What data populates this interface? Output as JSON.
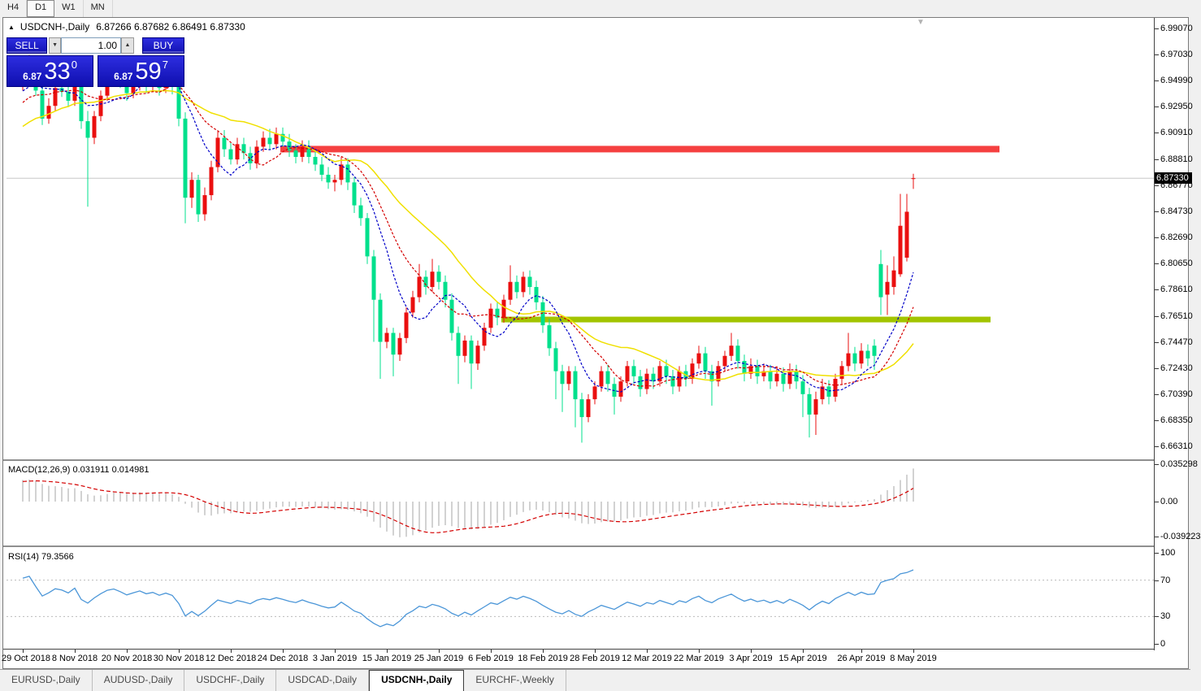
{
  "timeframe_bar": {
    "items": [
      {
        "label": "H4",
        "active": false
      },
      {
        "label": "D1",
        "active": true
      },
      {
        "label": "W1",
        "active": false
      },
      {
        "label": "MN",
        "active": false
      }
    ]
  },
  "chart_header": {
    "collapse_arrow": "▲",
    "symbol_title": "USDCNH-,Daily",
    "ohlc_values": "6.87266 6.87682 6.86491 6.87330",
    "shift_marker": "▼"
  },
  "trade_panel": {
    "sell_label": "SELL",
    "buy_label": "BUY",
    "volume": "1.00",
    "volume_down_glyph": "▼",
    "volume_up_glyph": "▲",
    "sell_price_small": "6.87",
    "sell_price_big": "33",
    "sell_price_sup": "0",
    "buy_price_small": "6.87",
    "buy_price_big": "59",
    "buy_price_sup": "7"
  },
  "macd_panel_label": "MACD(12,26,9) 0.031911 0.014981",
  "rsi_panel_label": "RSI(14) 79.3566",
  "bottom_tabs": [
    {
      "label": "EURUSD-,Daily",
      "active": false
    },
    {
      "label": "AUDUSD-,Daily",
      "active": false
    },
    {
      "label": "USDCHF-,Daily",
      "active": false
    },
    {
      "label": "USDCAD-,Daily",
      "active": false
    },
    {
      "label": "USDCNH-,Daily",
      "active": true
    },
    {
      "label": "EURCHF-,Weekly",
      "active": false
    }
  ],
  "chart_data": {
    "type": "candlestick",
    "symbol": "USDCNH-",
    "timeframe": "Daily",
    "current_bar": {
      "open": 6.87266,
      "high": 6.87682,
      "low": 6.86491,
      "close": 6.8733
    },
    "bid_price": 6.8733,
    "price_axis_ticks": [
      6.9907,
      6.9703,
      6.9499,
      6.9295,
      6.9091,
      6.8881,
      6.8677,
      6.8473,
      6.8269,
      6.8065,
      6.7861,
      6.7651,
      6.7447,
      6.7243,
      6.7039,
      6.6835,
      6.6631
    ],
    "x_ticks": [
      {
        "label": "29 Oct 2018",
        "index": 0
      },
      {
        "label": "8 Nov 2018",
        "index": 8
      },
      {
        "label": "20 Nov 2018",
        "index": 16
      },
      {
        "label": "30 Nov 2018",
        "index": 24
      },
      {
        "label": "12 Dec 2018",
        "index": 32
      },
      {
        "label": "24 Dec 2018",
        "index": 40
      },
      {
        "label": "3 Jan 2019",
        "index": 48
      },
      {
        "label": "15 Jan 2019",
        "index": 56
      },
      {
        "label": "25 Jan 2019",
        "index": 64
      },
      {
        "label": "6 Feb 2019",
        "index": 72
      },
      {
        "label": "18 Feb 2019",
        "index": 80
      },
      {
        "label": "28 Feb 2019",
        "index": 88
      },
      {
        "label": "12 Mar 2019",
        "index": 96
      },
      {
        "label": "22 Mar 2019",
        "index": 104
      },
      {
        "label": "3 Apr 2019",
        "index": 112
      },
      {
        "label": "15 Apr 2019",
        "index": 120
      },
      {
        "label": "26 Apr 2019",
        "index": 129
      },
      {
        "label": "8 May 2019",
        "index": 137
      }
    ],
    "candles": [
      [
        6.948,
        6.9635,
        6.942,
        6.952
      ],
      [
        6.952,
        6.97,
        6.948,
        6.96
      ],
      [
        6.96,
        6.968,
        6.938,
        6.942
      ],
      [
        6.942,
        6.947,
        6.915,
        6.92
      ],
      [
        6.92,
        6.936,
        6.916,
        6.93
      ],
      [
        6.93,
        6.95,
        6.926,
        6.944
      ],
      [
        6.944,
        6.949,
        6.937,
        6.941
      ],
      [
        6.941,
        6.946,
        6.929,
        6.934
      ],
      [
        6.934,
        6.956,
        6.93,
        6.95
      ],
      [
        6.95,
        6.954,
        6.912,
        6.918
      ],
      [
        6.918,
        6.926,
        6.851,
        6.905
      ],
      [
        6.905,
        6.926,
        6.9,
        6.922
      ],
      [
        6.922,
        6.942,
        6.918,
        6.938
      ],
      [
        6.938,
        6.956,
        6.934,
        6.952
      ],
      [
        6.952,
        6.962,
        6.946,
        6.958
      ],
      [
        6.958,
        6.964,
        6.944,
        6.95
      ],
      [
        6.95,
        6.956,
        6.934,
        6.94
      ],
      [
        6.94,
        6.952,
        6.936,
        6.948
      ],
      [
        6.948,
        6.96,
        6.942,
        6.955
      ],
      [
        6.955,
        6.96,
        6.94,
        6.947
      ],
      [
        6.947,
        6.956,
        6.942,
        6.952
      ],
      [
        6.952,
        6.957,
        6.938,
        6.944
      ],
      [
        6.944,
        6.955,
        6.94,
        6.951
      ],
      [
        6.951,
        6.956,
        6.939,
        6.945
      ],
      [
        6.945,
        6.948,
        6.914,
        6.92
      ],
      [
        6.92,
        6.925,
        6.838,
        6.858
      ],
      [
        6.858,
        6.878,
        6.85,
        6.872
      ],
      [
        6.872,
        6.876,
        6.839,
        6.845
      ],
      [
        6.845,
        6.866,
        6.84,
        6.86
      ],
      [
        6.86,
        6.887,
        6.856,
        6.882
      ],
      [
        6.882,
        6.91,
        6.878,
        6.905
      ],
      [
        6.905,
        6.911,
        6.89,
        6.896
      ],
      [
        6.896,
        6.901,
        6.884,
        6.888
      ],
      [
        6.888,
        6.905,
        6.884,
        6.9
      ],
      [
        6.9,
        6.905,
        6.888,
        6.893
      ],
      [
        6.893,
        6.898,
        6.88,
        6.885
      ],
      [
        6.885,
        6.903,
        6.881,
        6.898
      ],
      [
        6.898,
        6.91,
        6.894,
        6.905
      ],
      [
        6.905,
        6.912,
        6.896,
        6.9
      ],
      [
        6.9,
        6.913,
        6.896,
        6.908
      ],
      [
        6.908,
        6.913,
        6.898,
        6.902
      ],
      [
        6.902,
        6.908,
        6.89,
        6.895
      ],
      [
        6.895,
        6.9,
        6.885,
        6.89
      ],
      [
        6.89,
        6.903,
        6.886,
        6.898
      ],
      [
        6.898,
        6.903,
        6.885,
        6.89
      ],
      [
        6.89,
        6.895,
        6.879,
        6.884
      ],
      [
        6.884,
        6.89,
        6.871,
        6.876
      ],
      [
        6.876,
        6.882,
        6.865,
        6.87
      ],
      [
        6.87,
        6.876,
        6.863,
        6.872
      ],
      [
        6.872,
        6.89,
        6.868,
        6.884
      ],
      [
        6.884,
        6.889,
        6.864,
        6.87
      ],
      [
        6.87,
        6.874,
        6.846,
        6.852
      ],
      [
        6.852,
        6.858,
        6.836,
        6.842
      ],
      [
        6.842,
        6.846,
        6.806,
        6.812
      ],
      [
        6.812,
        6.817,
        6.745,
        6.778
      ],
      [
        6.778,
        6.783,
        6.716,
        6.745
      ],
      [
        6.745,
        6.756,
        6.74,
        6.752
      ],
      [
        6.752,
        6.756,
        6.718,
        6.735
      ],
      [
        6.735,
        6.752,
        6.73,
        6.748
      ],
      [
        6.748,
        6.772,
        6.744,
        6.768
      ],
      [
        6.768,
        6.785,
        6.764,
        6.78
      ],
      [
        6.78,
        6.806,
        6.776,
        6.796
      ],
      [
        6.796,
        6.801,
        6.782,
        6.788
      ],
      [
        6.788,
        6.81,
        6.784,
        6.8
      ],
      [
        6.8,
        6.805,
        6.786,
        6.792
      ],
      [
        6.792,
        6.797,
        6.772,
        6.778
      ],
      [
        6.778,
        6.783,
        6.746,
        6.752
      ],
      [
        6.752,
        6.757,
        6.712,
        6.734
      ],
      [
        6.734,
        6.75,
        6.729,
        6.746
      ],
      [
        6.746,
        6.75,
        6.708,
        6.728
      ],
      [
        6.728,
        6.746,
        6.723,
        6.742
      ],
      [
        6.742,
        6.76,
        6.738,
        6.756
      ],
      [
        6.756,
        6.775,
        6.752,
        6.771
      ],
      [
        6.771,
        6.776,
        6.758,
        6.764
      ],
      [
        6.764,
        6.782,
        6.76,
        6.778
      ],
      [
        6.778,
        6.805,
        6.774,
        6.792
      ],
      [
        6.792,
        6.797,
        6.779,
        6.784
      ],
      [
        6.784,
        6.8,
        6.78,
        6.796
      ],
      [
        6.796,
        6.801,
        6.782,
        6.788
      ],
      [
        6.788,
        6.793,
        6.77,
        6.776
      ],
      [
        6.776,
        6.781,
        6.752,
        6.758
      ],
      [
        6.758,
        6.763,
        6.734,
        6.74
      ],
      [
        6.74,
        6.745,
        6.7,
        6.722
      ],
      [
        6.722,
        6.727,
        6.69,
        6.712
      ],
      [
        6.712,
        6.726,
        6.707,
        6.722
      ],
      [
        6.722,
        6.726,
        6.678,
        6.7
      ],
      [
        6.7,
        6.705,
        6.666,
        6.686
      ],
      [
        6.686,
        6.704,
        6.682,
        6.7
      ],
      [
        6.7,
        6.714,
        6.696,
        6.71
      ],
      [
        6.71,
        6.726,
        6.706,
        6.722
      ],
      [
        6.722,
        6.727,
        6.706,
        6.712
      ],
      [
        6.712,
        6.717,
        6.688,
        6.702
      ],
      [
        6.702,
        6.718,
        6.698,
        6.714
      ],
      [
        6.714,
        6.73,
        6.71,
        6.726
      ],
      [
        6.726,
        6.731,
        6.712,
        6.718
      ],
      [
        6.718,
        6.723,
        6.702,
        6.708
      ],
      [
        6.708,
        6.724,
        6.704,
        6.72
      ],
      [
        6.72,
        6.725,
        6.708,
        6.714
      ],
      [
        6.714,
        6.73,
        6.71,
        6.726
      ],
      [
        6.726,
        6.731,
        6.712,
        6.718
      ],
      [
        6.718,
        6.723,
        6.704,
        6.71
      ],
      [
        6.71,
        6.726,
        6.706,
        6.722
      ],
      [
        6.722,
        6.727,
        6.71,
        6.716
      ],
      [
        6.716,
        6.732,
        6.712,
        6.728
      ],
      [
        6.728,
        6.742,
        6.724,
        6.736
      ],
      [
        6.736,
        6.741,
        6.716,
        6.722
      ],
      [
        6.722,
        6.727,
        6.695,
        6.714
      ],
      [
        6.714,
        6.73,
        6.71,
        6.726
      ],
      [
        6.726,
        6.738,
        6.722,
        6.734
      ],
      [
        6.734,
        6.752,
        6.73,
        6.742
      ],
      [
        6.742,
        6.747,
        6.724,
        6.73
      ],
      [
        6.73,
        6.735,
        6.714,
        6.72
      ],
      [
        6.72,
        6.732,
        6.716,
        6.726
      ],
      [
        6.726,
        6.731,
        6.712,
        6.718
      ],
      [
        6.718,
        6.728,
        6.714,
        6.722
      ],
      [
        6.722,
        6.727,
        6.708,
        6.714
      ],
      [
        6.714,
        6.726,
        6.71,
        6.72
      ],
      [
        6.72,
        6.725,
        6.706,
        6.712
      ],
      [
        6.712,
        6.728,
        6.708,
        6.722
      ],
      [
        6.722,
        6.727,
        6.708,
        6.714
      ],
      [
        6.714,
        6.719,
        6.686,
        6.704
      ],
      [
        6.704,
        6.709,
        6.67,
        6.688
      ],
      [
        6.688,
        6.706,
        6.672,
        6.7
      ],
      [
        6.7,
        6.716,
        6.696,
        6.71
      ],
      [
        6.71,
        6.715,
        6.696,
        6.702
      ],
      [
        6.702,
        6.72,
        6.698,
        6.716
      ],
      [
        6.716,
        6.73,
        6.712,
        6.726
      ],
      [
        6.726,
        6.752,
        6.722,
        6.736
      ],
      [
        6.736,
        6.741,
        6.722,
        6.728
      ],
      [
        6.728,
        6.744,
        6.724,
        6.738
      ],
      [
        6.738,
        6.743,
        6.726,
        6.732
      ],
      [
        6.742,
        6.747,
        6.723,
        6.734
      ],
      [
        6.806,
        6.817,
        6.766,
        6.78
      ],
      [
        6.782,
        6.805,
        6.766,
        6.792
      ],
      [
        6.788,
        6.812,
        6.782,
        6.801
      ],
      [
        6.798,
        6.861,
        6.796,
        6.836
      ],
      [
        6.811,
        6.861,
        6.808,
        6.847
      ],
      [
        6.8727,
        6.8768,
        6.8649,
        6.8733
      ]
    ],
    "moving_averages": {
      "blue_period": 8,
      "red_period": 13,
      "yellow_period": 24,
      "seed_ramp": {
        "from": 6.85,
        "to": 6.95,
        "n": 30,
        "zigzag": 0.004
      }
    },
    "macd": {
      "fast": 12,
      "slow": 26,
      "signal": 9,
      "value": 0.031911,
      "signal_value": 0.014981,
      "axis_ticks": [
        {
          "text": "0.035298",
          "v": 0.035298
        },
        {
          "text": "0.00",
          "v": 0
        },
        {
          "text": "-0.039223",
          "v": -0.039223
        }
      ]
    },
    "rsi": {
      "period": 14,
      "value": 79.3566,
      "levels": [
        70,
        30
      ],
      "axis_ticks": [
        {
          "text": "100",
          "v": 100
        },
        {
          "text": "70",
          "v": 70
        },
        {
          "text": "30",
          "v": 30
        },
        {
          "text": "0",
          "v": 0
        }
      ]
    },
    "hlines": [
      {
        "name": "resistance-band",
        "price": 6.8961,
        "x1": 345,
        "x2": 1230,
        "thickness": 8,
        "color": "#f54040"
      },
      {
        "name": "support-band",
        "price": 6.7625,
        "x1": 617,
        "x2": 1219,
        "thickness": 7,
        "color": "#a2c400"
      }
    ],
    "colors": {
      "bull": "#ea0f0f",
      "bear": "#00e08c",
      "ma_blue": "#0000c8",
      "ma_red": "#d40000",
      "ma_yellow": "#f0e000",
      "histogram": "#c6c6c6",
      "signal": "#d40000",
      "rsi_line": "#4b96d8",
      "bid_line": "#c8c8c8",
      "level_line": "#bbbbbb"
    },
    "layout": {
      "x0": 28,
      "dx": 8,
      "plot_left": 8,
      "plot_right": 1420,
      "price_anchor": {
        "price": 6.9907,
        "y": 35,
        "scale": 1569
      },
      "price_pane": [
        22,
        565
      ],
      "macd_pane": [
        568,
        671
      ],
      "macd_zero_y": 617,
      "macd_pos_scale": 1303,
      "macd_neg_scale": 1096,
      "rsi_pane": [
        674,
        798
      ],
      "rsi_zero_y": 792,
      "rsi_scale": 1.12
    }
  }
}
